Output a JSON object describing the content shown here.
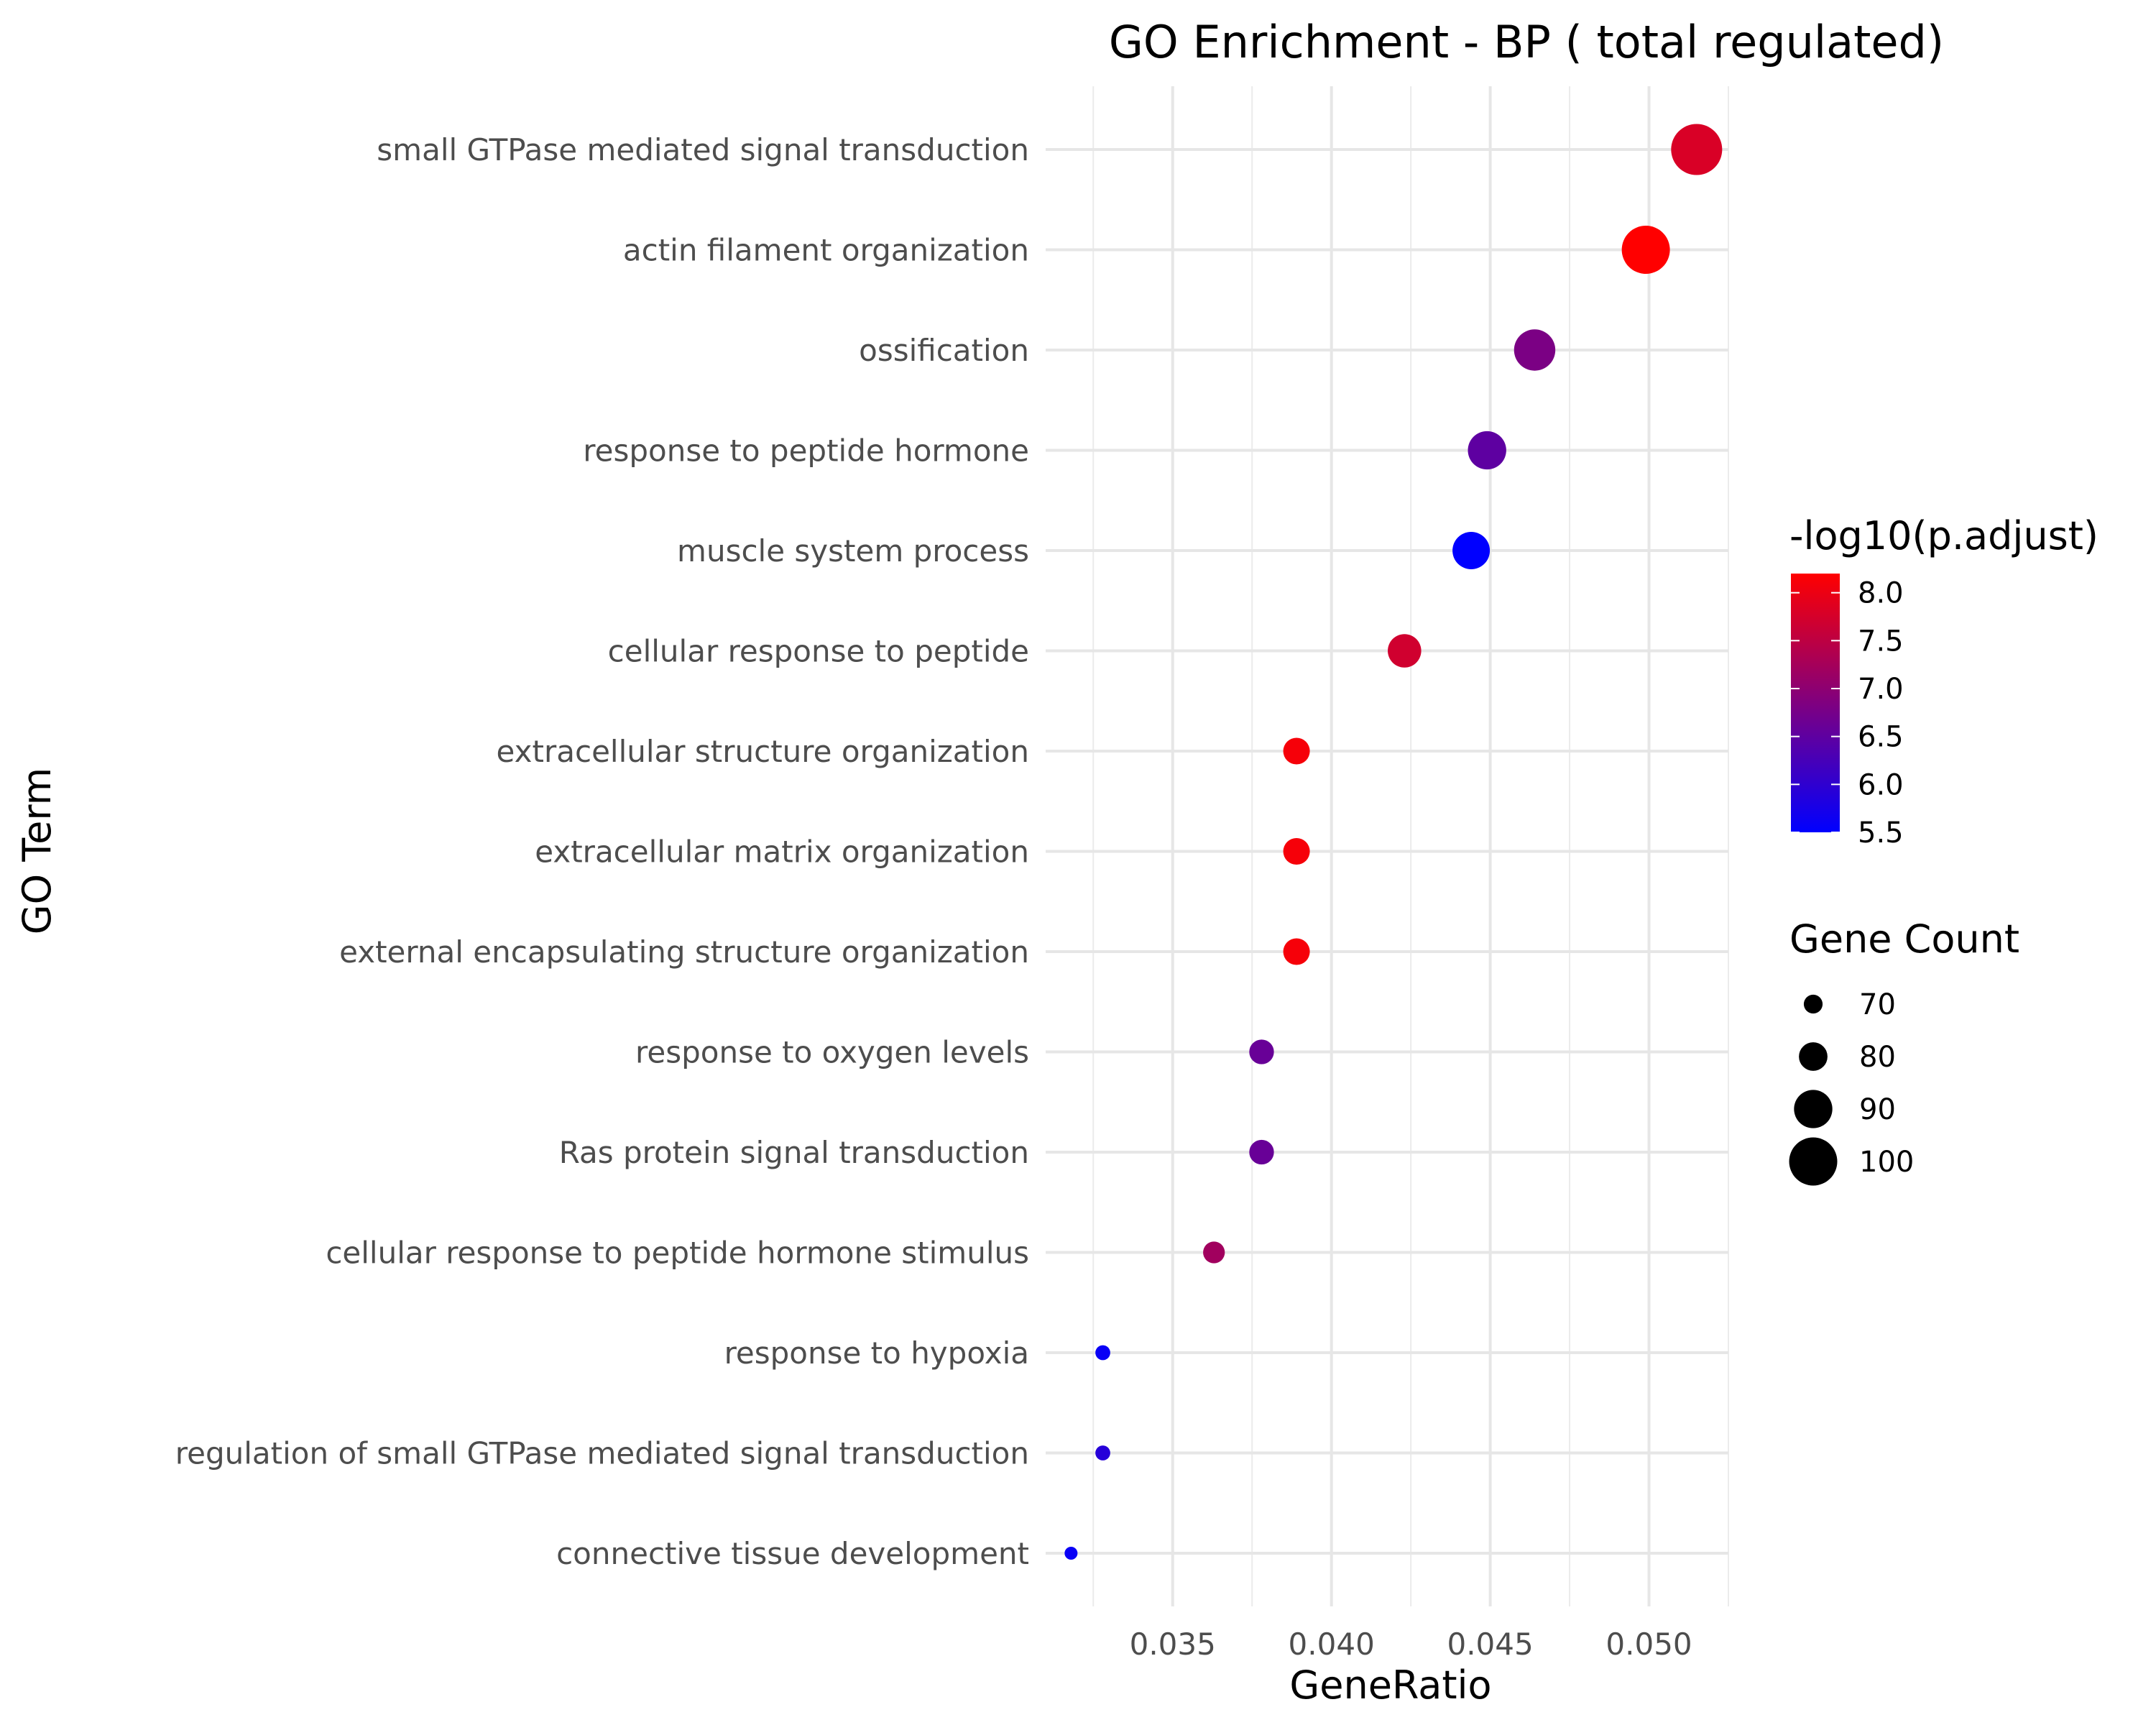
{
  "chart_data": {
    "type": "scatter",
    "title": "GO Enrichment - BP ( total regulated)",
    "xlabel": "GeneRatio",
    "ylabel": "GO Term",
    "xlim": [
      0.031,
      0.0525
    ],
    "x_ticks": [
      "0.035",
      "0.040",
      "0.045",
      "0.050"
    ],
    "x_tick_values": [
      0.035,
      0.04,
      0.045,
      0.05
    ],
    "grid": true,
    "legend_placement": "right",
    "color_legend": {
      "title": "-log10(p.adjust)",
      "low_color": "#0000ff",
      "high_color": "#ff0000",
      "range": [
        5.5,
        8.2
      ],
      "ticks": [
        "5.5",
        "6.0",
        "6.5",
        "7.0",
        "7.5",
        "8.0"
      ],
      "tick_values": [
        5.5,
        6.0,
        6.5,
        7.0,
        7.5,
        8.0
      ]
    },
    "size_legend": {
      "title": "Gene Count",
      "labels": [
        "70",
        "80",
        "90",
        "100"
      ],
      "values": [
        70,
        80,
        90,
        100
      ],
      "color": "#000000"
    },
    "points": [
      {
        "term": "small GTPase mediated signal transduction",
        "x": 0.0515,
        "log_padj": 7.8,
        "count": 103
      },
      {
        "term": "actin filament organization",
        "x": 0.0499,
        "log_padj": 8.2,
        "count": 100
      },
      {
        "term": "ossification",
        "x": 0.0464,
        "log_padj": 6.8,
        "count": 93
      },
      {
        "term": "response to peptide hormone",
        "x": 0.0449,
        "log_padj": 6.5,
        "count": 90
      },
      {
        "term": "muscle system process",
        "x": 0.0444,
        "log_padj": 5.5,
        "count": 89
      },
      {
        "term": "cellular response to peptide",
        "x": 0.0423,
        "log_padj": 7.7,
        "count": 85
      },
      {
        "term": "extracellular structure organization",
        "x": 0.0389,
        "log_padj": 8.1,
        "count": 78
      },
      {
        "term": "extracellular matrix organization",
        "x": 0.0389,
        "log_padj": 8.1,
        "count": 78
      },
      {
        "term": "external encapsulating structure organization",
        "x": 0.0389,
        "log_padj": 8.1,
        "count": 78
      },
      {
        "term": "response to oxygen levels",
        "x": 0.0378,
        "log_padj": 6.6,
        "count": 76
      },
      {
        "term": "Ras protein signal transduction",
        "x": 0.0378,
        "log_padj": 6.6,
        "count": 76
      },
      {
        "term": "cellular response to peptide hormone stimulus",
        "x": 0.0363,
        "log_padj": 7.2,
        "count": 73
      },
      {
        "term": "response to hypoxia",
        "x": 0.0328,
        "log_padj": 5.6,
        "count": 66
      },
      {
        "term": "regulation of small GTPase mediated signal transduction",
        "x": 0.0328,
        "log_padj": 5.9,
        "count": 66
      },
      {
        "term": "connective tissue development",
        "x": 0.0318,
        "log_padj": 5.6,
        "count": 64
      }
    ]
  }
}
